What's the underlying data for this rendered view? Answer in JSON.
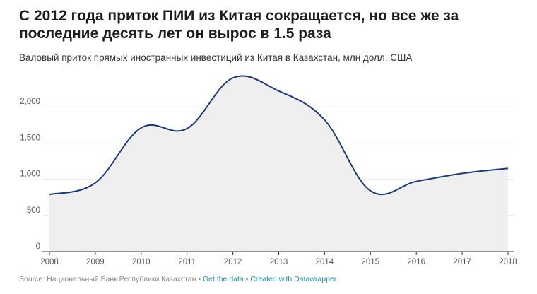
{
  "header": {
    "title": "С 2012 года приток ПИИ из Китая сокращается, но все же за последние десять лет он вырос в 1.5 раза",
    "subtitle": "Валовый приток прямых иностранных инвестиций из Китая в Казахстан, млн долл. США"
  },
  "footer": {
    "source": "Source: Национальный Банк Республики Казахстан",
    "separator": "•",
    "get_data_label": "Get the data",
    "created_with_label": "Created with Datawrapper"
  },
  "chart_data": {
    "type": "area",
    "title": "С 2012 года приток ПИИ из Китая сокращается, но все же за последние десять лет он вырос в 1.5 раза",
    "subtitle": "Валовый приток прямых иностранных инвестиций из Китая в Казахстан, млн долл. США",
    "x": [
      2008,
      2009,
      2010,
      2011,
      2012,
      2013,
      2014,
      2015,
      2016,
      2017,
      2018
    ],
    "x_tick_labels": [
      "2008",
      "2009",
      "2010",
      "2011",
      "2012",
      "2013",
      "2014",
      "2015",
      "2016",
      "2017",
      "2018"
    ],
    "series": [
      {
        "values": [
          790,
          950,
          1710,
          1700,
          2400,
          2220,
          1820,
          840,
          970,
          1080,
          1150
        ]
      }
    ],
    "y_ticks": [
      0,
      500,
      1000,
      1500,
      2000
    ],
    "y_tick_labels": [
      "0",
      "500",
      "1,000",
      "1,500",
      "2,000"
    ],
    "ylim": [
      0,
      2500
    ],
    "xlim": [
      2008,
      2018
    ],
    "xlabel": "",
    "ylabel": "",
    "grid": true,
    "line_color": "#1a3a7a",
    "fill_color": "#efefef",
    "grid_color": "#e4e4e4",
    "axis_color": "#333333"
  }
}
